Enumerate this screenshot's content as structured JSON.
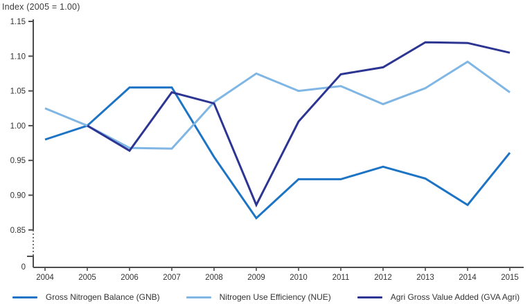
{
  "chart_data": {
    "type": "line",
    "title": "Index (2005 = 1.00)",
    "x_categories": [
      "2004",
      "2005",
      "2006",
      "2007",
      "2008",
      "2009",
      "2010",
      "2011",
      "2012",
      "2013",
      "2014",
      "2015"
    ],
    "y_axis": {
      "tick_values": [
        0.85,
        0.9,
        0.95,
        1.0,
        1.05,
        1.1,
        1.15
      ],
      "tick_labels": [
        "0.85",
        "0.90",
        "0.95",
        "1.00",
        "1.05",
        "1.10",
        "1.15"
      ],
      "zero_label": "0",
      "axis_break": true,
      "ylim": [
        0.85,
        1.15
      ]
    },
    "grid": "off",
    "legend_position": "bottom",
    "series": [
      {
        "name": "Gross Nitrogen Balance (GNB)",
        "color": "#1d74c4",
        "values": [
          0.98,
          1.0,
          1.055,
          1.055,
          0.955,
          0.867,
          0.923,
          0.923,
          0.941,
          0.924,
          0.886,
          0.961
        ]
      },
      {
        "name": "Nitrogen Use Efficiency (NUE)",
        "color": "#7fb6e4",
        "values": [
          1.025,
          1.0,
          0.968,
          0.967,
          1.034,
          1.075,
          1.05,
          1.057,
          1.031,
          1.054,
          1.092,
          1.048
        ]
      },
      {
        "name": "Agri Gross Value Added (GVA Agri)",
        "color": "#2c3592",
        "values": [
          null,
          1.0,
          0.964,
          1.048,
          1.032,
          0.886,
          1.006,
          1.074,
          1.084,
          1.12,
          1.119,
          1.105
        ]
      }
    ],
    "colors": {
      "axis": "#4d4d4d",
      "label": "#333333"
    }
  }
}
